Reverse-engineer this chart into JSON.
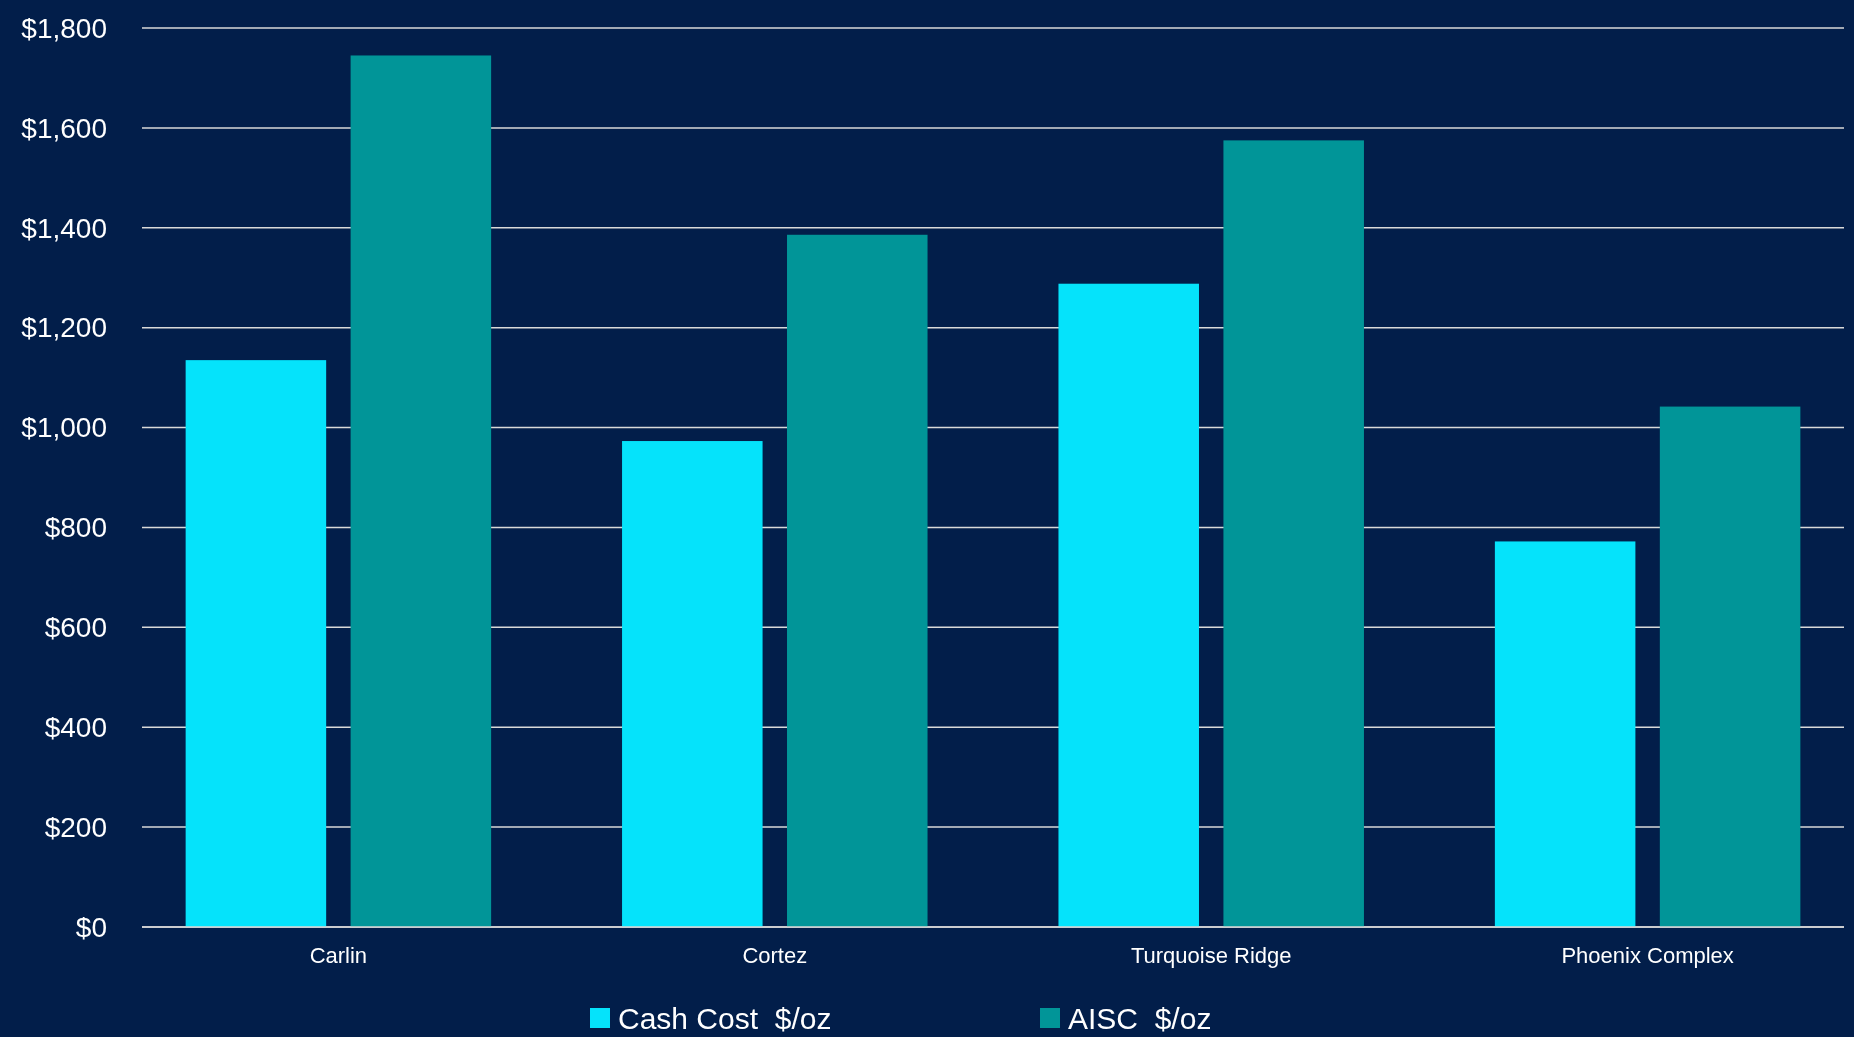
{
  "chart_data": {
    "type": "bar",
    "categories": [
      "Carlin",
      "Cortez",
      "Turquoise Ridge",
      "Phoenix Complex"
    ],
    "series": [
      {
        "name": "Cash Cost  $/oz",
        "color": "#05e3fb",
        "values": [
          1135,
          973,
          1288,
          772
        ]
      },
      {
        "name": "AISC  $/oz",
        "color": "#019598",
        "values": [
          1745,
          1386,
          1575,
          1042
        ]
      }
    ],
    "ylim": [
      0,
      1800
    ],
    "yticks": [
      {
        "value": 0,
        "label": "$0"
      },
      {
        "value": 200,
        "label": "$200"
      },
      {
        "value": 400,
        "label": "$400"
      },
      {
        "value": 600,
        "label": "$600"
      },
      {
        "value": 800,
        "label": "$800"
      },
      {
        "value": 1000,
        "label": "$1,000"
      },
      {
        "value": 1200,
        "label": "$1,200"
      },
      {
        "value": 1400,
        "label": "$1,400"
      },
      {
        "value": 1600,
        "label": "$1,600"
      },
      {
        "value": 1800,
        "label": "$1,800"
      }
    ],
    "grid": "y",
    "legend": "bottom"
  }
}
